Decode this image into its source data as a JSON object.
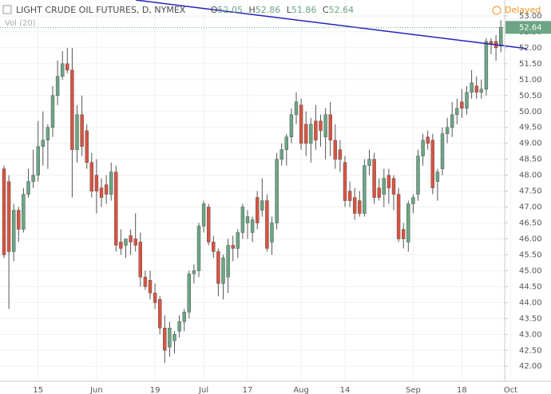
{
  "chart_data": {
    "type": "candlestick",
    "title": "LIGHT CRUDE OIL FUTURES, D, NYMEX",
    "field_labels": [
      "O",
      "H",
      "L",
      "C"
    ],
    "volume_label": "Vol (20)",
    "status": "Delayed",
    "up_color": "#6ba583",
    "down_color": "#d75442",
    "grid": true,
    "ylim": [
      41.73,
      53.5
    ],
    "yticks": [
      {
        "value": 42,
        "label": "42.00"
      },
      {
        "value": 42.5,
        "label": "42.50"
      },
      {
        "value": 43,
        "label": "43.00"
      },
      {
        "value": 43.5,
        "label": "43.50"
      },
      {
        "value": 44,
        "label": "44.00"
      },
      {
        "value": 44.5,
        "label": "44.50"
      },
      {
        "value": 45,
        "label": "45.00"
      },
      {
        "value": 45.5,
        "label": "45.50"
      },
      {
        "value": 46,
        "label": "46.00"
      },
      {
        "value": 46.5,
        "label": "46.50"
      },
      {
        "value": 47,
        "label": "47.00"
      },
      {
        "value": 47.5,
        "label": "47.50"
      },
      {
        "value": 48,
        "label": "48.00"
      },
      {
        "value": 48.5,
        "label": "48.50"
      },
      {
        "value": 49,
        "label": "49.00"
      },
      {
        "value": 49.5,
        "label": "49.50"
      },
      {
        "value": 50,
        "label": "50.00"
      },
      {
        "value": 50.5,
        "label": "50.50"
      },
      {
        "value": 51,
        "label": "51.00"
      },
      {
        "value": 51.5,
        "label": "51.50"
      },
      {
        "value": 52,
        "label": "52.00"
      },
      {
        "value": 52.5,
        "label": "52.50"
      },
      {
        "value": 53,
        "label": "53.00"
      }
    ],
    "categories": [
      null,
      null,
      null,
      null,
      null,
      null,
      null,
      "15",
      null,
      null,
      null,
      null,
      null,
      null,
      null,
      null,
      null,
      null,
      null,
      "Jun",
      null,
      null,
      null,
      null,
      null,
      null,
      null,
      null,
      null,
      null,
      null,
      "19",
      null,
      null,
      null,
      null,
      null,
      null,
      null,
      null,
      null,
      "Jul",
      null,
      null,
      null,
      null,
      null,
      null,
      null,
      null,
      "17",
      null,
      null,
      null,
      null,
      null,
      null,
      null,
      null,
      null,
      null,
      "Aug",
      null,
      null,
      null,
      null,
      null,
      null,
      null,
      null,
      "14",
      null,
      null,
      null,
      null,
      null,
      null,
      null,
      null,
      null,
      null,
      null,
      null,
      null,
      "Sep",
      null,
      null,
      null,
      null,
      null,
      null,
      null,
      null,
      null,
      "18",
      null,
      null,
      null,
      null,
      null,
      null,
      null,
      null,
      null,
      "Oct"
    ],
    "open": [
      48.2,
      47.8,
      45.6,
      46.9,
      46.3,
      47.4,
      47.8,
      48.0,
      48.9,
      49.1,
      49.5,
      50.5,
      51.1,
      51.5,
      51.3,
      48.8,
      49.9,
      49.4,
      48.4,
      48.0,
      47.6,
      47.7,
      47.4,
      48.1,
      45.9,
      45.8,
      46.1,
      46.0,
      45.9,
      44.8,
      44.7,
      44.3,
      44.1,
      43.2,
      42.6,
      42.8,
      43.1,
      43.4,
      43.7,
      44.9,
      45.0,
      46.4,
      47.0,
      45.9,
      45.6,
      44.6,
      44.8,
      45.8,
      45.7,
      46.2,
      46.5,
      46.2,
      47.3,
      46.9,
      47.2,
      45.9,
      46.5,
      48.5,
      48.8,
      49.2,
      49.9,
      50.2,
      49.6,
      49.0,
      49.7,
      49.7,
      49.2,
      49.9,
      49.1,
      48.8,
      48.4,
      47.5,
      47.3,
      47.2,
      46.8,
      48.3,
      48.5,
      47.6,
      47.4,
      48.0,
      47.9,
      47.4,
      46.3,
      45.9,
      47.1,
      47.4,
      48.6,
      49.2,
      49.1,
      47.8,
      48.2,
      49.3,
      49.5,
      49.9,
      50.3,
      50.1,
      50.6,
      50.8,
      50.6,
      50.7,
      52.2,
      52.2,
      52.05,
      null,
      null
    ],
    "high": [
      48.3,
      48.0,
      47.1,
      47.0,
      47.6,
      48.2,
      48.8,
      49.7,
      50.0,
      49.6,
      50.8,
      51.6,
      51.9,
      52.0,
      52.0,
      50.2,
      50.5,
      49.6,
      48.7,
      48.5,
      47.9,
      48.0,
      48.4,
      48.3,
      46.3,
      46.0,
      46.3,
      46.8,
      46.2,
      45.0,
      45.0,
      44.6,
      44.2,
      43.6,
      43.4,
      43.1,
      43.6,
      43.8,
      45.0,
      45.2,
      46.5,
      47.2,
      47.1,
      46.1,
      45.7,
      45.5,
      46.0,
      46.1,
      46.3,
      47.1,
      46.9,
      46.7,
      47.5,
      47.9,
      47.4,
      46.7,
      48.7,
      49.0,
      49.3,
      50.1,
      50.6,
      50.4,
      50.0,
      49.8,
      50.2,
      49.9,
      50.1,
      50.3,
      49.6,
      49.1,
      48.6,
      47.8,
      47.6,
      47.5,
      48.5,
      48.8,
      48.7,
      47.9,
      48.2,
      48.2,
      48.0,
      47.6,
      46.5,
      47.2,
      47.4,
      48.8,
      49.3,
      49.4,
      49.3,
      48.2,
      49.5,
      49.8,
      50.3,
      50.4,
      50.7,
      50.8,
      51.3,
      51.1,
      51.0,
      52.3,
      52.3,
      52.4,
      52.86,
      null,
      null
    ],
    "low": [
      45.4,
      43.8,
      45.3,
      45.9,
      46.2,
      47.3,
      47.6,
      47.8,
      48.3,
      48.2,
      49.2,
      50.2,
      51.0,
      51.2,
      47.3,
      48.4,
      48.6,
      48.2,
      47.3,
      46.8,
      47.0,
      47.1,
      47.2,
      45.6,
      45.5,
      45.4,
      45.5,
      45.6,
      44.5,
      44.4,
      44.1,
      43.8,
      43.0,
      42.1,
      42.3,
      42.4,
      42.9,
      43.1,
      43.5,
      44.6,
      44.8,
      46.2,
      45.8,
      45.4,
      44.2,
      44.1,
      44.3,
      45.3,
      45.4,
      46.0,
      46.0,
      45.9,
      46.3,
      46.7,
      45.6,
      45.5,
      46.3,
      48.3,
      48.3,
      49.0,
      49.6,
      48.8,
      48.6,
      48.4,
      48.8,
      48.9,
      48.5,
      48.6,
      48.2,
      48.1,
      47.0,
      47.0,
      46.6,
      46.7,
      46.7,
      48.0,
      47.1,
      47.2,
      47.0,
      47.1,
      46.9,
      45.9,
      45.7,
      45.6,
      46.8,
      47.2,
      48.3,
      48.8,
      47.4,
      47.2,
      48.0,
      49.0,
      49.2,
      49.6,
      49.8,
      49.9,
      50.4,
      50.4,
      50.4,
      50.5,
      51.8,
      51.6,
      51.86,
      null,
      null
    ],
    "close": [
      45.5,
      45.6,
      46.9,
      46.3,
      47.4,
      47.8,
      48.0,
      48.9,
      49.1,
      49.5,
      50.5,
      51.1,
      51.5,
      51.3,
      48.8,
      49.9,
      48.9,
      48.4,
      47.5,
      47.5,
      47.3,
      47.4,
      48.1,
      45.8,
      45.7,
      46.0,
      45.9,
      45.8,
      44.8,
      44.5,
      44.3,
      44.0,
      43.2,
      42.5,
      43.2,
      43.0,
      43.4,
      43.7,
      44.9,
      45.0,
      46.4,
      47.1,
      45.9,
      45.6,
      44.6,
      45.4,
      45.8,
      45.7,
      46.2,
      47.0,
      46.7,
      46.6,
      46.5,
      47.2,
      45.7,
      46.5,
      48.5,
      48.8,
      49.2,
      49.9,
      50.3,
      49.0,
      49.0,
      49.6,
      49.1,
      49.4,
      49.9,
      49.1,
      48.5,
      48.5,
      47.2,
      47.2,
      46.8,
      46.8,
      48.3,
      48.5,
      47.3,
      47.3,
      47.9,
      47.6,
      47.4,
      46.0,
      46.0,
      47.1,
      47.3,
      48.6,
      49.1,
      49.0,
      47.6,
      48.1,
      49.3,
      49.5,
      49.9,
      50.1,
      50.1,
      50.6,
      50.9,
      50.6,
      50.7,
      52.2,
      52.1,
      52.0,
      52.64,
      null,
      null
    ]
  }
}
